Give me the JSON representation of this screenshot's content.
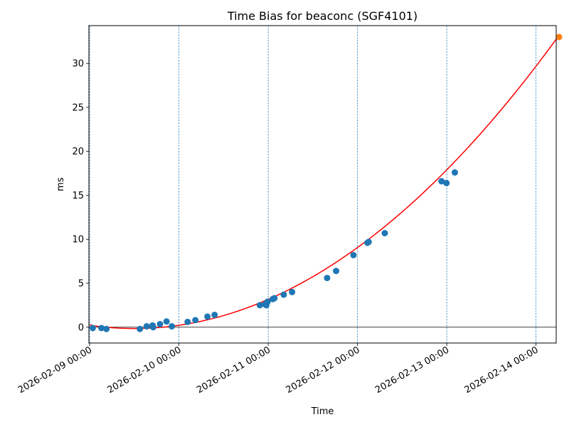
{
  "chart_data": {
    "type": "scatter",
    "title": "Time Bias for beaconc (SGF4101)",
    "xlabel": "Time",
    "ylabel": "ms",
    "x_domain": [
      "2026-02-08 23:48",
      "2026-02-14 05:25"
    ],
    "ylim": [
      -1.8,
      34.3
    ],
    "yticks": [
      0,
      5,
      10,
      15,
      20,
      25,
      30
    ],
    "xticks": [
      "2026-02-09 00:00",
      "2026-02-10 00:00",
      "2026-02-11 00:00",
      "2026-02-12 00:00",
      "2026-02-13 00:00",
      "2026-02-14 00:00"
    ],
    "grid": "vertical dashed lines at x ticks",
    "zero_line": true,
    "colors": {
      "points": "#1f77b4",
      "highlight": "#ff7f0e",
      "fit": "#ff0000",
      "grid": "#1f77b4",
      "zero": "#000000"
    },
    "points": [
      {
        "x": "2026-02-09 00:50",
        "y": -0.1
      },
      {
        "x": "2026-02-09 03:10",
        "y": -0.1
      },
      {
        "x": "2026-02-09 04:30",
        "y": -0.2
      },
      {
        "x": "2026-02-09 13:30",
        "y": -0.2
      },
      {
        "x": "2026-02-09 15:20",
        "y": 0.1
      },
      {
        "x": "2026-02-09 16:55",
        "y": 0.2
      },
      {
        "x": "2026-02-09 17:05",
        "y": 0.0
      },
      {
        "x": "2026-02-09 18:55",
        "y": 0.35
      },
      {
        "x": "2026-02-09 20:40",
        "y": 0.65
      },
      {
        "x": "2026-02-09 22:05",
        "y": 0.1
      },
      {
        "x": "2026-02-10 02:20",
        "y": 0.6
      },
      {
        "x": "2026-02-10 04:25",
        "y": 0.8
      },
      {
        "x": "2026-02-10 07:40",
        "y": 1.2
      },
      {
        "x": "2026-02-10 09:35",
        "y": 1.4
      },
      {
        "x": "2026-02-10 21:45",
        "y": 2.5
      },
      {
        "x": "2026-02-10 23:10",
        "y": 2.6
      },
      {
        "x": "2026-02-10 23:30",
        "y": 2.5
      },
      {
        "x": "2026-02-10 23:50",
        "y": 2.9
      },
      {
        "x": "2026-02-11 01:15",
        "y": 3.2
      },
      {
        "x": "2026-02-11 01:40",
        "y": 3.3
      },
      {
        "x": "2026-02-11 04:10",
        "y": 3.7
      },
      {
        "x": "2026-02-11 06:25",
        "y": 4.0
      },
      {
        "x": "2026-02-11 15:50",
        "y": 5.6
      },
      {
        "x": "2026-02-11 18:15",
        "y": 6.4
      },
      {
        "x": "2026-02-11 22:55",
        "y": 8.2
      },
      {
        "x": "2026-02-12 02:40",
        "y": 9.6
      },
      {
        "x": "2026-02-12 03:00",
        "y": 9.7
      },
      {
        "x": "2026-02-12 07:20",
        "y": 10.7
      },
      {
        "x": "2026-02-12 22:35",
        "y": 16.6
      },
      {
        "x": "2026-02-12 23:55",
        "y": 16.4
      },
      {
        "x": "2026-02-13 02:10",
        "y": 17.6
      }
    ],
    "highlight_point": {
      "x": "2026-02-14 06:10",
      "y": 33.0
    },
    "fit": {
      "type": "quadratic",
      "x_start": "2026-02-09 00:00",
      "x_end": "2026-02-14 05:50",
      "y_at_x_start": 0.3,
      "y_at_x_end": 33.0,
      "min_x": "2026-02-09 12:00",
      "min_y": -0.15
    }
  }
}
